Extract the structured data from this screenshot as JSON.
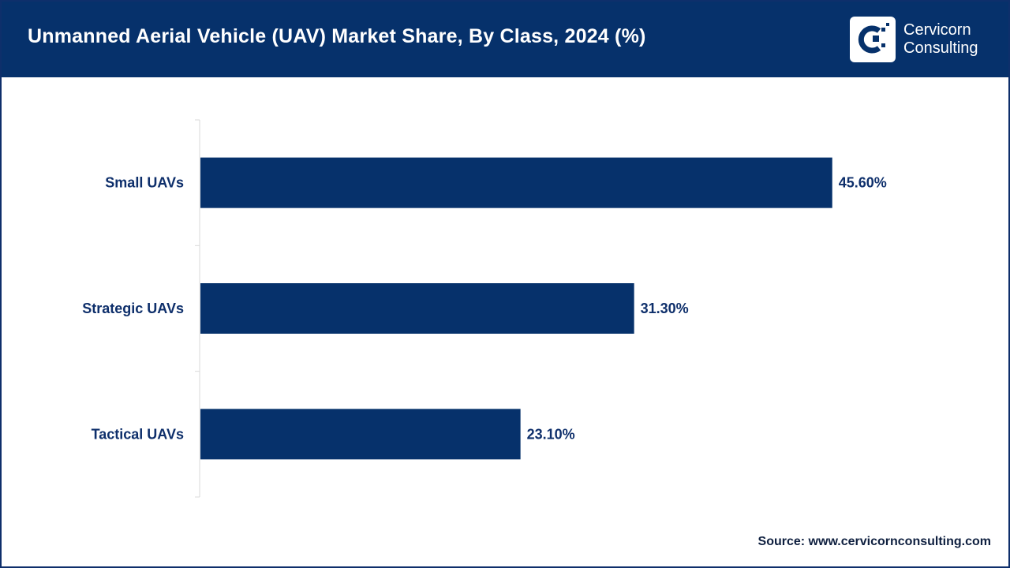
{
  "header": {
    "title": "Unmanned Aerial Vehicle (UAV) Market Share, By Class, 2024 (%)"
  },
  "logo": {
    "line1": "Cervicorn",
    "line2": "Consulting",
    "lettering": "Cervicorn Consulting"
  },
  "colors": {
    "header_bg": "#06316b",
    "bar": "#06316b",
    "text": "#0e2f6b",
    "axis": "#d9d9d9"
  },
  "chart_data": {
    "type": "bar",
    "orientation": "horizontal",
    "title": "Unmanned Aerial Vehicle (UAV) Market Share, By Class, 2024 (%)",
    "categories": [
      "Small UAVs",
      "Strategic UAVs",
      "Tactical UAVs"
    ],
    "values": [
      45.6,
      31.3,
      23.1
    ],
    "data_labels": [
      "45.60%",
      "31.30%",
      "23.10%"
    ],
    "xlabel": "",
    "ylabel": "",
    "xlim": [
      0,
      50
    ],
    "grid": false,
    "legend": "none"
  },
  "footer": {
    "source": "Source: www.cervicornconsulting.com"
  }
}
